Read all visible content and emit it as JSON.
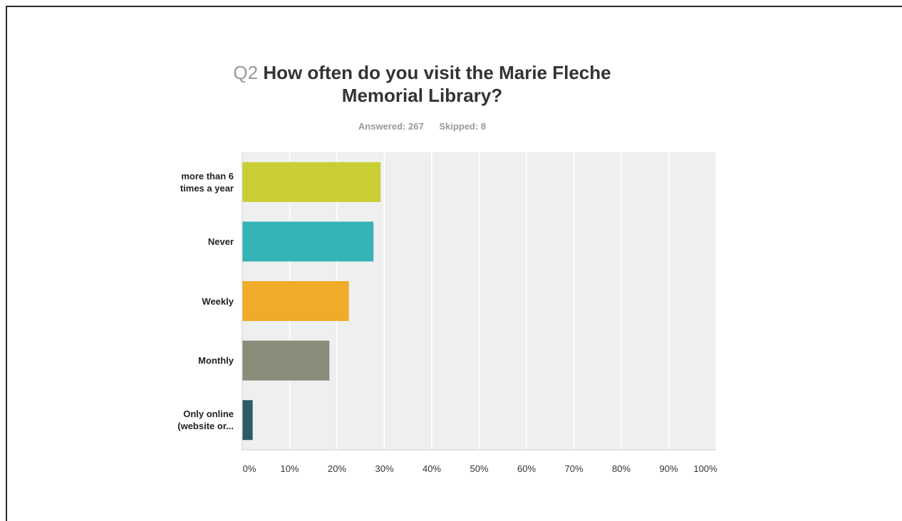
{
  "question": {
    "number": "Q2",
    "text_line1": "How often do you visit the Marie Fleche",
    "text_line2": "Memorial Library?"
  },
  "stats": {
    "answered": "Answered: 267",
    "skipped": "Skipped: 8"
  },
  "chart_data": {
    "type": "bar",
    "orientation": "horizontal",
    "categories": [
      [
        "more than 6",
        "times a year"
      ],
      [
        "Never"
      ],
      [
        "Weekly"
      ],
      [
        "Monthly"
      ],
      [
        "Only online",
        "(website or..."
      ]
    ],
    "values": [
      29.2,
      27.7,
      22.5,
      18.4,
      2.2
    ],
    "colors": [
      "#c9ce35",
      "#36b3b6",
      "#efab29",
      "#8b8b7a",
      "#2c5b6a"
    ],
    "xlim": [
      0,
      100
    ],
    "xticks": [
      "0%",
      "10%",
      "20%",
      "30%",
      "40%",
      "50%",
      "60%",
      "70%",
      "80%",
      "90%",
      "100%"
    ],
    "grid": true,
    "plot_background": "#eef0f0"
  }
}
